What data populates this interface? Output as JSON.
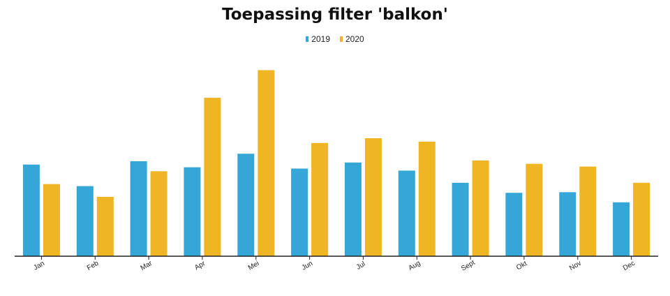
{
  "chart_data": {
    "type": "bar",
    "title": "Toepassing filter 'balkon'",
    "categories": [
      "Jan",
      "Feb",
      "Mar",
      "Apr",
      "Mei",
      "Jun",
      "Jul",
      "Aug",
      "Sept",
      "Okt",
      "Nov",
      "Dec"
    ],
    "series": [
      {
        "name": "2019",
        "color": "#35a6d8",
        "values": [
          136,
          104,
          141,
          132,
          152,
          130,
          139,
          127,
          109,
          94,
          95,
          80
        ]
      },
      {
        "name": "2020",
        "color": "#efb522",
        "values": [
          107,
          88,
          126,
          235,
          276,
          168,
          175,
          170,
          142,
          137,
          133,
          109
        ]
      }
    ],
    "xlabel": "",
    "ylabel": "",
    "ylim": [
      0,
      290
    ],
    "grid": false,
    "legend_position": "top-center"
  }
}
